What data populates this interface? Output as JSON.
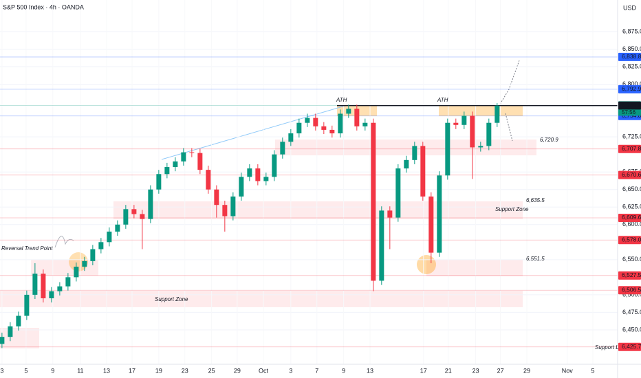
{
  "chart_data": {
    "type": "candlestick",
    "title": "S&P 500 Index · 4h · OANDA",
    "currency": "USD",
    "up_color": "#089981",
    "down_color": "#f23645",
    "x": [
      0,
      2.5,
      5,
      7.5,
      10,
      12.5,
      15,
      17.5,
      20,
      22.5,
      25,
      27.5,
      30,
      32.5,
      35,
      37.5,
      40,
      42.5,
      45,
      47.5,
      50,
      52.5,
      55,
      57.5,
      60,
      62.5,
      65,
      67.5,
      70,
      72.5,
      75,
      77.5,
      80,
      82.5,
      85,
      87.5,
      90,
      92.5,
      95,
      97.5,
      100,
      102.5,
      105,
      107.5,
      110,
      112.5,
      115,
      117.5,
      120,
      122.5,
      125,
      127.5,
      130,
      132.5,
      135,
      137.5,
      140,
      142.5,
      145,
      147.5,
      150
    ],
    "open": [
      6430,
      6440,
      6455,
      6470,
      6500,
      6530,
      6495,
      6505,
      6512,
      6525,
      6540,
      6548,
      6565,
      6575,
      6590,
      6600,
      6622,
      6615,
      6608,
      6650,
      6672,
      6682,
      6690,
      6703,
      6702,
      6678,
      6650,
      6628,
      6612,
      6640,
      6668,
      6680,
      6662,
      6668,
      6700,
      6718,
      6730,
      6745,
      6752,
      6740,
      6735,
      6730,
      6758,
      6765,
      6740,
      6745,
      6520,
      6620,
      6610,
      6680,
      6692,
      6712,
      6640,
      6560,
      6670,
      6745,
      6742,
      6755,
      6710,
      6712,
      6745
    ],
    "high": [
      6446,
      6461,
      6476,
      6506,
      6545,
      6536,
      6511,
      6518,
      6531,
      6546,
      6554,
      6571,
      6581,
      6596,
      6606,
      6628,
      6628,
      6621,
      6656,
      6678,
      6688,
      6696,
      6709,
      6709,
      6708,
      6684,
      6656,
      6634,
      6646,
      6674,
      6686,
      6686,
      6674,
      6706,
      6724,
      6736,
      6751,
      6758,
      6758,
      6746,
      6741,
      6764,
      6771,
      6771,
      6751,
      6751,
      6626,
      6626,
      6686,
      6698,
      6718,
      6718,
      6646,
      6676,
      6751,
      6751,
      6761,
      6761,
      6718,
      6751,
      6773
    ],
    "low": [
      6424,
      6434,
      6449,
      6464,
      6494,
      6489,
      6489,
      6499,
      6506,
      6519,
      6534,
      6542,
      6559,
      6569,
      6584,
      6594,
      6609,
      6565,
      6602,
      6644,
      6666,
      6676,
      6684,
      6696,
      6672,
      6644,
      6610,
      6590,
      6606,
      6634,
      6662,
      6656,
      6656,
      6662,
      6694,
      6712,
      6724,
      6739,
      6734,
      6729,
      6724,
      6724,
      6752,
      6734,
      6734,
      6505,
      6514,
      6565,
      6604,
      6674,
      6686,
      6634,
      6545,
      6554,
      6664,
      6736,
      6736,
      6665,
      6704,
      6706,
      6739
    ],
    "close": [
      6440,
      6455,
      6470,
      6500,
      6530,
      6495,
      6505,
      6512,
      6525,
      6540,
      6548,
      6565,
      6575,
      6590,
      6600,
      6622,
      6615,
      6608,
      6650,
      6672,
      6682,
      6690,
      6703,
      6702,
      6678,
      6650,
      6628,
      6612,
      6640,
      6668,
      6680,
      6662,
      6668,
      6700,
      6718,
      6730,
      6745,
      6752,
      6740,
      6735,
      6730,
      6758,
      6765,
      6740,
      6745,
      6520,
      6620,
      6610,
      6680,
      6692,
      6712,
      6640,
      6560,
      6670,
      6745,
      6742,
      6755,
      6710,
      6712,
      6745,
      6769.5
    ],
    "xlim": [
      -0.6,
      186.5
    ],
    "ylim": [
      6401,
      6920
    ],
    "xticks": [
      {
        "value": 0,
        "label": "3"
      },
      {
        "value": 7.3,
        "label": "5"
      },
      {
        "value": 15.4,
        "label": "9"
      },
      {
        "value": 23.75,
        "label": "11"
      },
      {
        "value": 31.7,
        "label": "13"
      },
      {
        "value": 39.4,
        "label": "17"
      },
      {
        "value": 47.5,
        "label": "19"
      },
      {
        "value": 55.4,
        "label": "23"
      },
      {
        "value": 63.5,
        "label": "25"
      },
      {
        "value": 71.25,
        "label": "29"
      },
      {
        "value": 79.2,
        "label": "Oct"
      },
      {
        "value": 87.5,
        "label": "3"
      },
      {
        "value": 95.4,
        "label": "7"
      },
      {
        "value": 103.5,
        "label": "9"
      },
      {
        "value": 111.5,
        "label": "13"
      },
      {
        "value": 127.7,
        "label": "17"
      },
      {
        "value": 135.2,
        "label": "21"
      },
      {
        "value": 143.5,
        "label": "23"
      },
      {
        "value": 151,
        "label": "27"
      },
      {
        "value": 159,
        "label": "29"
      },
      {
        "value": 171.25,
        "label": "Nov"
      },
      {
        "value": 179,
        "label": "5"
      }
    ],
    "yticks": [
      {
        "value": 6875,
        "label": "6,875.0"
      },
      {
        "value": 6850,
        "label": "6,850.0"
      },
      {
        "value": 6825,
        "label": "6,825.0"
      },
      {
        "value": 6800,
        "label": "6,800.0"
      },
      {
        "value": 6725,
        "label": "6,725.0"
      },
      {
        "value": 6675,
        "label": "6,675.0"
      },
      {
        "value": 6650,
        "label": "6,650.0"
      },
      {
        "value": 6625,
        "label": "6,625.0"
      },
      {
        "value": 6600,
        "label": "6,600.0"
      },
      {
        "value": 6550,
        "label": "6,550.0"
      },
      {
        "value": 6500,
        "label": "6,500.0"
      },
      {
        "value": 6475,
        "label": "6,475.0"
      },
      {
        "value": 6450,
        "label": "6,450.0"
      }
    ],
    "levels": [
      {
        "value": 6838.8,
        "label": "6,838.8",
        "color": "#2962ff"
      },
      {
        "value": 6792.9,
        "label": "6,792.9",
        "color": "#2962ff"
      },
      {
        "value": 6769.8,
        "label": "6,769.8",
        "color": "#089981"
      },
      {
        "value": 6769.5,
        "label": "6,769.5",
        "color": "#131722"
      },
      {
        "value": 6754.8,
        "label": "6,754.8",
        "color": "#2962ff"
      },
      {
        "value": 6707.8,
        "label": "6,707.8",
        "color": "#f23645"
      },
      {
        "value": 6670.6,
        "label": "6,670.6",
        "color": "#f23645"
      },
      {
        "value": 6609.6,
        "label": "6,609.6",
        "color": "#f23645"
      },
      {
        "value": 6578.0,
        "label": "6,578.0",
        "color": "#f23645"
      },
      {
        "value": 6527.5,
        "label": "6,527.5",
        "color": "#f23645"
      },
      {
        "value": 6506.5,
        "label": "6,506.5",
        "color": "#f23645"
      },
      {
        "value": 6425.7,
        "label": "6,425.7",
        "color": "#f23645"
      }
    ],
    "countdown": "57:56",
    "annotations": {
      "ath_left": "ATH",
      "ath_right": "ATH",
      "level_6720": "6,720.9",
      "level_6635": "6,635.5",
      "support_zone_right": "Support Zone",
      "level_6551": "6,551.5",
      "support_zone_left": "Support Zone",
      "reversal": "Reversal Trend Point",
      "support_line": "Support Line"
    }
  }
}
